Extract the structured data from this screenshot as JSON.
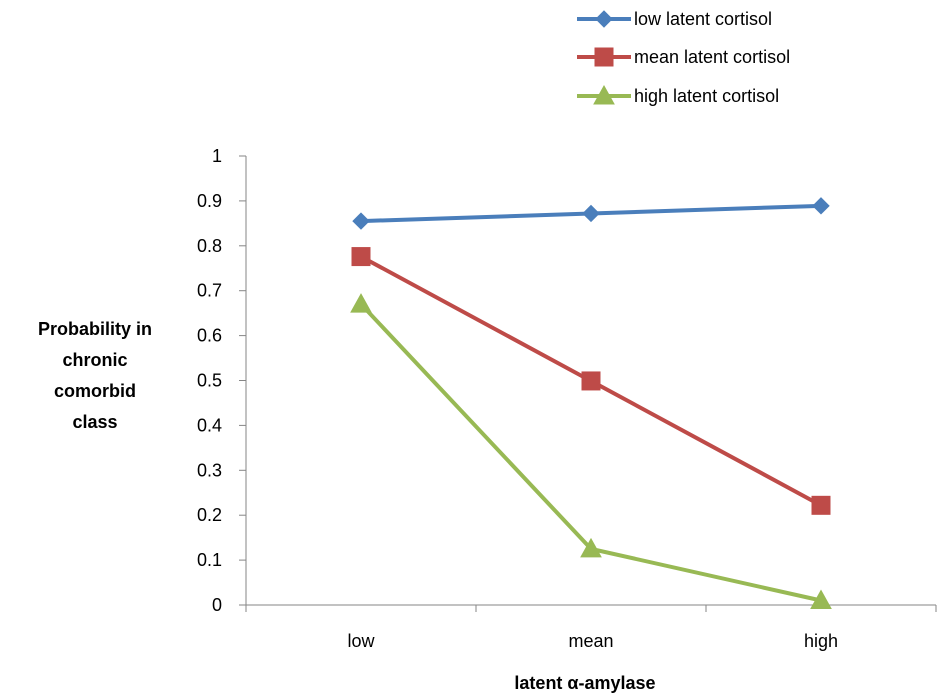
{
  "chart_data": {
    "type": "line",
    "title": "",
    "xlabel": "latent α-amylase",
    "ylabel": "Probability in chronic comorbid class",
    "ylabel_lines": [
      "Probability in",
      "chronic",
      "comorbid",
      "class"
    ],
    "categories": [
      "low",
      "mean",
      "high"
    ],
    "ylim": [
      0,
      1
    ],
    "yticks": [
      "0",
      "0.1",
      "0.2",
      "0.3",
      "0.4",
      "0.5",
      "0.6",
      "0.7",
      "0.8",
      "0.9",
      "1"
    ],
    "grid": false,
    "legend_position": "top-right",
    "series": [
      {
        "name": "low latent cortisol",
        "values": [
          0.855,
          0.872,
          0.889
        ],
        "color": "#4a7ebb",
        "marker": "diamond"
      },
      {
        "name": "mean latent cortisol",
        "values": [
          0.776,
          0.499,
          0.222
        ],
        "color": "#be4b48",
        "marker": "square"
      },
      {
        "name": "high latent cortisol",
        "values": [
          0.67,
          0.125,
          0.01
        ],
        "color": "#98b954",
        "marker": "triangle"
      }
    ]
  }
}
